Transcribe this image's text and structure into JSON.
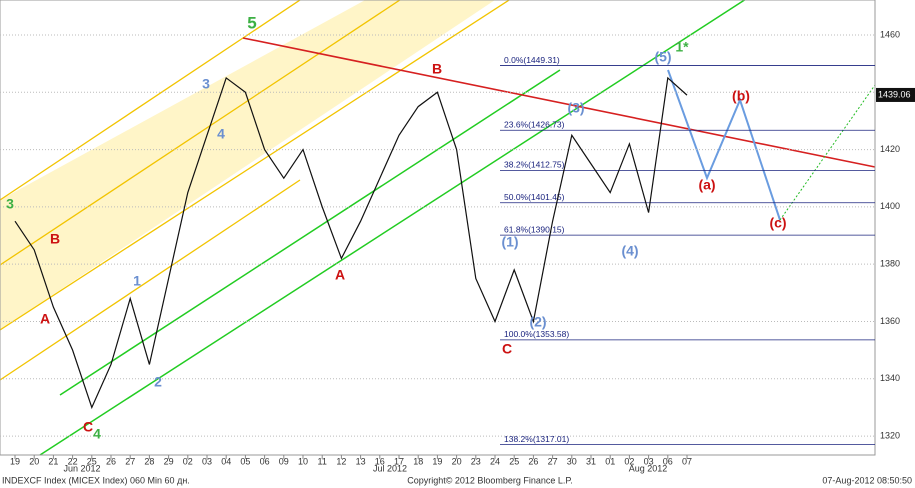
{
  "chart_data": {
    "type": "line",
    "color": "#111111",
    "categories": [
      "19",
      "20",
      "21",
      "22",
      "25",
      "26",
      "27",
      "28",
      "29",
      "02",
      "03",
      "04",
      "05",
      "06",
      "09",
      "10",
      "11",
      "12",
      "13",
      "16",
      "17",
      "18",
      "19",
      "20",
      "23",
      "24",
      "25",
      "26",
      "27",
      "30",
      "31",
      "01",
      "02",
      "03",
      "06",
      "07"
    ],
    "values": [
      1395,
      1385,
      1365,
      1350,
      1330,
      1345,
      1368,
      1345,
      1375,
      1405,
      1425,
      1445,
      1440,
      1420,
      1410,
      1420,
      1400,
      1382,
      1395,
      1410,
      1425,
      1435,
      1440,
      1420,
      1375,
      1360,
      1378,
      1360,
      1395,
      1425,
      1415,
      1405,
      1422,
      1398,
      1445,
      1439
    ],
    "months": [
      "Jun 2012",
      "Jul 2012",
      "Aug 2012"
    ],
    "ylim": [
      1313.4,
      1472.2
    ],
    "yticks": [
      1320,
      1340,
      1360,
      1380,
      1400,
      1420,
      1440,
      1460
    ],
    "grid": true,
    "last_price": 1439.06,
    "fib_levels": [
      {
        "label": "0.0%(1449.31)",
        "value": 1449.31
      },
      {
        "label": "23.6%(1426.73)",
        "value": 1426.73
      },
      {
        "label": "38.2%(1412.75)",
        "value": 1412.75
      },
      {
        "label": "50.0%(1401.45)",
        "value": 1401.45
      },
      {
        "label": "61.8%(1390.15)",
        "value": 1390.15
      },
      {
        "label": "100.0%(1353.58)",
        "value": 1353.58
      },
      {
        "label": "138.2%(1317.01)",
        "value": 1317.01
      }
    ],
    "annotations": [
      {
        "text": "5",
        "color": "#3cb043"
      },
      {
        "text": "3",
        "color": "#3cb043"
      },
      {
        "text": "4",
        "color": "#3cb043"
      },
      {
        "text": "C",
        "color": "#cc1111"
      },
      {
        "text": "B",
        "color": "#cc1111"
      },
      {
        "text": "A",
        "color": "#cc1111"
      },
      {
        "text": "1",
        "color": "#6a8fd0"
      },
      {
        "text": "2",
        "color": "#6a8fd0"
      },
      {
        "text": "3",
        "color": "#6a8fd0"
      },
      {
        "text": "4",
        "color": "#6a8fd0"
      },
      {
        "text": "A",
        "color": "#cc1111"
      },
      {
        "text": "B",
        "color": "#cc1111"
      },
      {
        "text": "C",
        "color": "#cc1111"
      },
      {
        "text": "(1)",
        "color": "#6a8fd0"
      },
      {
        "text": "(2)",
        "color": "#6a8fd0"
      },
      {
        "text": "(3)",
        "color": "#6a8fd0"
      },
      {
        "text": "(4)",
        "color": "#6a8fd0"
      },
      {
        "text": "(5)",
        "color": "#6a8fd0"
      },
      {
        "text": "1*",
        "color": "#3cb043"
      },
      {
        "text": "(a)",
        "color": "#cc1111"
      },
      {
        "text": "(b)",
        "color": "#cc1111"
      },
      {
        "text": "(c)",
        "color": "#cc1111"
      }
    ]
  },
  "footer": {
    "left": "INDEXCF Index (MICEX Index) 060 Min 60 дн.",
    "center": "Copyright© 2012 Bloomberg Finance L.P.",
    "right": "07-Aug-2012 08:50:50"
  }
}
